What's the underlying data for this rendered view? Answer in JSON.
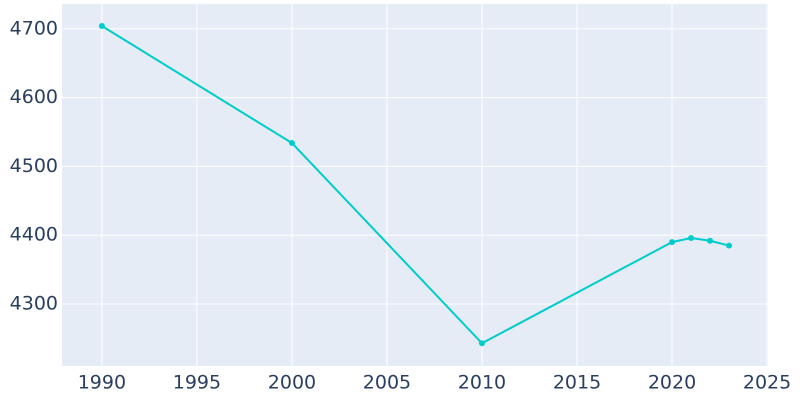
{
  "chart_data": {
    "type": "line",
    "x": [
      1990,
      2000,
      2010,
      2020,
      2021,
      2022,
      2023
    ],
    "series": [
      {
        "color": "#00cccc",
        "values": [
          4704,
          4534,
          4243,
          4390,
          4396,
          4392,
          4385
        ]
      }
    ],
    "xlim": [
      1987.9,
      2025.05
    ],
    "xticks": [
      1990,
      1995,
      2000,
      2005,
      2010,
      2015,
      2020,
      2025
    ],
    "ylim": [
      4210,
      4736
    ],
    "yticks": [
      4300,
      4400,
      4500,
      4600,
      4700
    ],
    "grid": true
  }
}
